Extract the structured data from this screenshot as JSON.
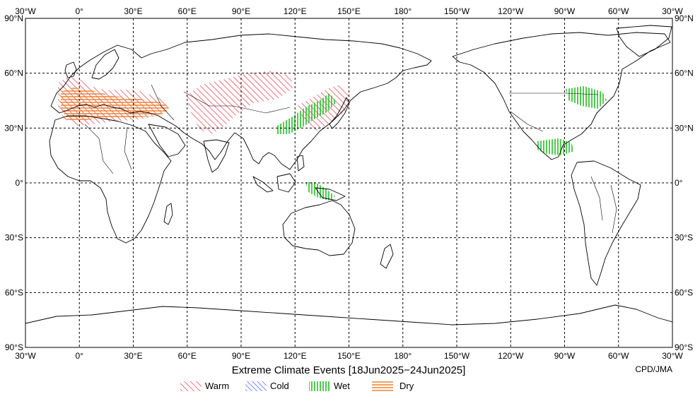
{
  "title": "Extreme Climate Events [18Jun2025−24Jun2025]",
  "credit": "CPD/JMA",
  "lon_labels": [
    "30°W",
    "0°",
    "30°E",
    "60°E",
    "90°E",
    "120°E",
    "150°E",
    "180°",
    "150°W",
    "120°W",
    "90°W",
    "60°W",
    "30°W"
  ],
  "lat_labels": [
    "90°N",
    "60°N",
    "30°N",
    "0°",
    "30°S",
    "60°S",
    "90°S"
  ],
  "legend": [
    {
      "key": "warm",
      "label": "Warm",
      "color": "#e8505a"
    },
    {
      "key": "cold",
      "label": "Cold",
      "color": "#3a50e8"
    },
    {
      "key": "wet",
      "label": "Wet",
      "color": "#22c022"
    },
    {
      "key": "dry",
      "label": "Dry",
      "color": "#f07f2a"
    }
  ],
  "colors": {
    "warm": "#e8505a",
    "cold": "#3a50e8",
    "wet": "#22c022",
    "dry": "#f07f2a",
    "map_line": "#000000"
  }
}
